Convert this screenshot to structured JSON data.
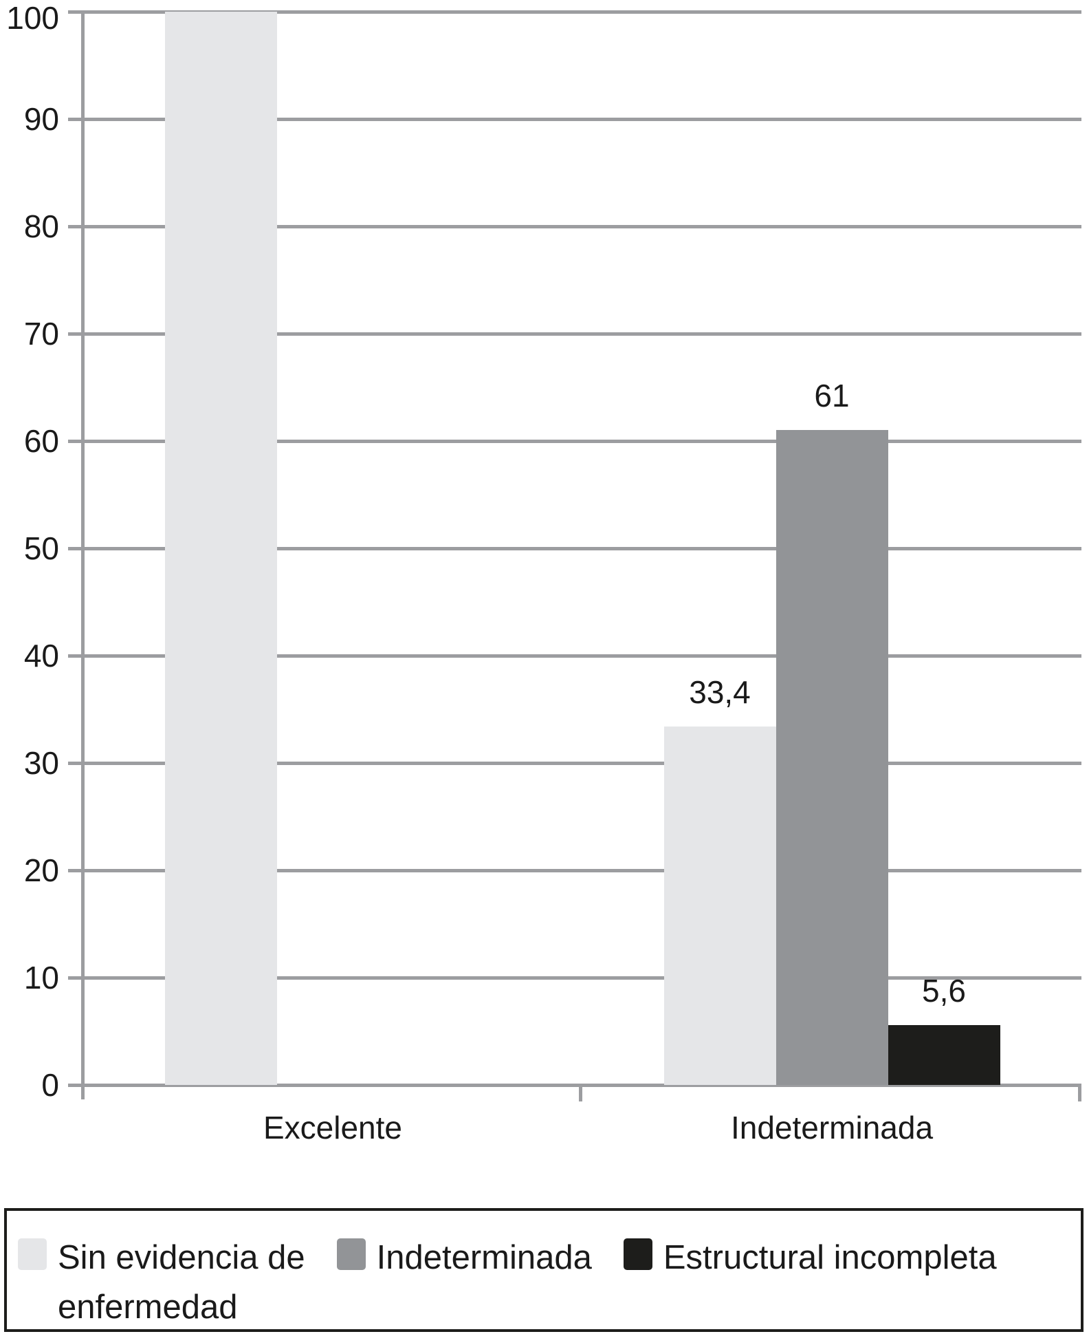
{
  "chart_data": {
    "type": "bar",
    "title": "",
    "categories": [
      "Excelente",
      "Indeterminada"
    ],
    "series": [
      {
        "name": "Sin evidencia de enfermedad",
        "color": "#e5e6e8",
        "values": [
          100,
          33.4
        ],
        "bar_labels": [
          "",
          "33,4"
        ]
      },
      {
        "name": "Indeterminada",
        "color": "#929497",
        "values": [
          0,
          61
        ],
        "bar_labels": [
          "",
          "61"
        ]
      },
      {
        "name": "Estructural incompleta",
        "color": "#1d1d1b",
        "values": [
          0,
          5.6
        ],
        "bar_labels": [
          "",
          "5,6"
        ]
      }
    ],
    "xlabel": "",
    "ylabel": "",
    "ylim": [
      0,
      100
    ],
    "ytick_step": 10,
    "ytick_labels": [
      "0",
      "10",
      "20",
      "30",
      "40",
      "50",
      "60",
      "70",
      "80",
      "90",
      "100"
    ],
    "grid": true,
    "legend_position": "bottom"
  },
  "legend": {
    "items": [
      {
        "label_lines": [
          "Sin evidencia de",
          "enfermedad"
        ],
        "color": "#e5e6e8"
      },
      {
        "label_lines": [
          "Indeterminada"
        ],
        "color": "#929497"
      },
      {
        "label_lines": [
          "Estructural incompleta"
        ],
        "color": "#1d1d1b"
      }
    ]
  },
  "colors": {
    "grid": "#9c9da0",
    "axis": "#9c9da0",
    "text": "#1a1a1a",
    "background": "#ffffff",
    "legend_border": "#1d1d1b"
  }
}
